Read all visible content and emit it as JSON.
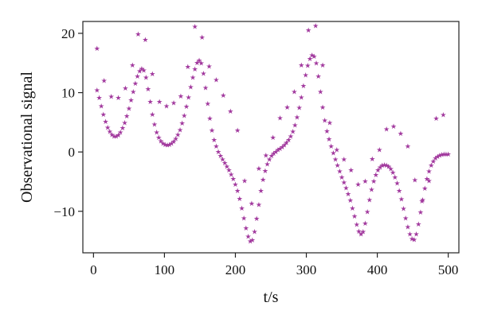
{
  "chart_data": {
    "type": "scatter",
    "title": "",
    "xlabel": "t/s",
    "ylabel": "Observational signal",
    "xlim": [
      -15,
      515
    ],
    "ylim": [
      -17,
      22
    ],
    "xticks": [
      0,
      100,
      200,
      300,
      400,
      500
    ],
    "yticks": [
      -10,
      0,
      10,
      20
    ],
    "grid": false,
    "legend": "none",
    "marker": "star",
    "colors": {
      "marker": "#a23a9e",
      "axis": "#222222"
    },
    "series": [
      {
        "curve_points": [
          [
            5,
            10.3
          ],
          [
            8,
            9.0
          ],
          [
            11,
            7.6
          ],
          [
            14,
            6.2
          ],
          [
            17,
            5.0
          ],
          [
            20,
            4.0
          ],
          [
            23,
            3.3
          ],
          [
            26,
            2.8
          ],
          [
            29,
            2.5
          ],
          [
            32,
            2.5
          ],
          [
            35,
            2.7
          ],
          [
            38,
            3.2
          ],
          [
            41,
            3.9
          ],
          [
            44,
            4.8
          ],
          [
            47,
            5.9
          ],
          [
            50,
            7.2
          ],
          [
            53,
            8.6
          ],
          [
            56,
            10.0
          ],
          [
            59,
            11.4
          ],
          [
            62,
            12.6
          ],
          [
            65,
            13.5
          ],
          [
            68,
            13.9
          ],
          [
            71,
            13.6
          ],
          [
            74,
            12.4
          ],
          [
            77,
            10.5
          ],
          [
            80,
            8.3
          ],
          [
            83,
            6.2
          ],
          [
            86,
            4.5
          ],
          [
            89,
            3.2
          ],
          [
            92,
            2.3
          ],
          [
            95,
            1.7
          ],
          [
            98,
            1.3
          ],
          [
            101,
            1.1
          ],
          [
            104,
            1.0
          ],
          [
            107,
            1.1
          ],
          [
            110,
            1.3
          ],
          [
            113,
            1.6
          ],
          [
            116,
            2.1
          ],
          [
            119,
            2.8
          ],
          [
            122,
            3.6
          ],
          [
            125,
            4.7
          ],
          [
            128,
            6.0
          ],
          [
            131,
            7.5
          ],
          [
            134,
            9.1
          ],
          [
            137,
            10.8
          ],
          [
            140,
            12.4
          ],
          [
            143,
            13.8
          ],
          [
            146,
            14.9
          ],
          [
            149,
            15.3
          ],
          [
            152,
            14.8
          ],
          [
            155,
            13.1
          ],
          [
            158,
            10.7
          ],
          [
            161,
            8.0
          ],
          [
            164,
            5.5
          ],
          [
            167,
            3.5
          ],
          [
            170,
            1.9
          ],
          [
            173,
            0.8
          ],
          [
            176,
            -0.1
          ],
          [
            179,
            -0.8
          ],
          [
            182,
            -1.4
          ],
          [
            185,
            -2.0
          ],
          [
            188,
            -2.6
          ],
          [
            191,
            -3.2
          ],
          [
            194,
            -3.9
          ],
          [
            197,
            -4.7
          ],
          [
            200,
            -5.6
          ],
          [
            203,
            -6.7
          ],
          [
            206,
            -8.0
          ],
          [
            209,
            -9.6
          ],
          [
            212,
            -11.3
          ],
          [
            215,
            -13.0
          ],
          [
            218,
            -14.4
          ],
          [
            221,
            -15.2
          ],
          [
            224,
            -15.0
          ],
          [
            227,
            -13.6
          ],
          [
            230,
            -11.4
          ],
          [
            233,
            -9.0
          ],
          [
            236,
            -6.7
          ],
          [
            239,
            -4.8
          ],
          [
            242,
            -3.3
          ],
          [
            245,
            -2.2
          ],
          [
            248,
            -1.4
          ],
          [
            251,
            -0.8
          ],
          [
            254,
            -0.4
          ],
          [
            257,
            -0.1
          ],
          [
            260,
            0.2
          ],
          [
            263,
            0.4
          ],
          [
            266,
            0.7
          ],
          [
            269,
            1.0
          ],
          [
            272,
            1.4
          ],
          [
            275,
            1.9
          ],
          [
            278,
            2.5
          ],
          [
            281,
            3.3
          ],
          [
            284,
            4.4
          ],
          [
            287,
            5.7
          ],
          [
            290,
            7.3
          ],
          [
            293,
            9.1
          ],
          [
            296,
            11.0
          ],
          [
            299,
            12.8
          ],
          [
            302,
            14.4
          ],
          [
            305,
            15.6
          ],
          [
            308,
            16.2
          ],
          [
            311,
            16.0
          ],
          [
            314,
            14.8
          ],
          [
            317,
            12.6
          ],
          [
            320,
            10.0
          ],
          [
            323,
            7.4
          ],
          [
            326,
            5.2
          ],
          [
            329,
            3.4
          ],
          [
            332,
            2.0
          ],
          [
            335,
            0.8
          ],
          [
            338,
            -0.3
          ],
          [
            341,
            -1.4
          ],
          [
            344,
            -2.4
          ],
          [
            347,
            -3.4
          ],
          [
            350,
            -4.4
          ],
          [
            353,
            -5.3
          ],
          [
            356,
            -6.2
          ],
          [
            359,
            -7.2
          ],
          [
            362,
            -8.3
          ],
          [
            365,
            -9.6
          ],
          [
            368,
            -11.0
          ],
          [
            371,
            -12.4
          ],
          [
            374,
            -13.5
          ],
          [
            377,
            -14.0
          ],
          [
            380,
            -13.6
          ],
          [
            383,
            -12.2
          ],
          [
            386,
            -10.2
          ],
          [
            389,
            -8.2
          ],
          [
            392,
            -6.5
          ],
          [
            395,
            -5.1
          ],
          [
            398,
            -4.0
          ],
          [
            401,
            -3.2
          ],
          [
            404,
            -2.7
          ],
          [
            407,
            -2.4
          ],
          [
            410,
            -2.3
          ],
          [
            413,
            -2.4
          ],
          [
            416,
            -2.6
          ],
          [
            419,
            -3.0
          ],
          [
            422,
            -3.6
          ],
          [
            425,
            -4.4
          ],
          [
            428,
            -5.4
          ],
          [
            431,
            -6.7
          ],
          [
            434,
            -8.1
          ],
          [
            437,
            -9.7
          ],
          [
            440,
            -11.3
          ],
          [
            443,
            -12.8
          ],
          [
            446,
            -14.0
          ],
          [
            449,
            -14.8
          ],
          [
            452,
            -14.9
          ],
          [
            455,
            -14.0
          ],
          [
            458,
            -12.3
          ],
          [
            461,
            -10.3
          ],
          [
            464,
            -8.2
          ],
          [
            467,
            -6.3
          ],
          [
            470,
            -4.7
          ],
          [
            473,
            -3.4
          ],
          [
            476,
            -2.4
          ],
          [
            479,
            -1.7
          ],
          [
            482,
            -1.2
          ],
          [
            485,
            -0.9
          ],
          [
            488,
            -0.7
          ],
          [
            491,
            -0.6
          ],
          [
            494,
            -0.5
          ],
          [
            497,
            -0.5
          ],
          [
            500,
            -0.5
          ]
        ],
        "outlier_points": [
          [
            5,
            17.3
          ],
          [
            15,
            11.9
          ],
          [
            25,
            9.2
          ],
          [
            35,
            9.0
          ],
          [
            45,
            10.6
          ],
          [
            55,
            14.5
          ],
          [
            63,
            19.7
          ],
          [
            73,
            18.8
          ],
          [
            83,
            13.0
          ],
          [
            93,
            8.3
          ],
          [
            103,
            7.6
          ],
          [
            113,
            8.1
          ],
          [
            123,
            9.3
          ],
          [
            133,
            14.2
          ],
          [
            143,
            21.0
          ],
          [
            153,
            19.2
          ],
          [
            163,
            14.3
          ],
          [
            173,
            12.0
          ],
          [
            183,
            9.4
          ],
          [
            193,
            6.7
          ],
          [
            203,
            3.5
          ],
          [
            213,
            -5.0
          ],
          [
            223,
            -8.8
          ],
          [
            233,
            -2.9
          ],
          [
            243,
            -0.7
          ],
          [
            253,
            2.3
          ],
          [
            263,
            5.6
          ],
          [
            273,
            7.4
          ],
          [
            283,
            10.0
          ],
          [
            293,
            14.5
          ],
          [
            303,
            20.4
          ],
          [
            313,
            21.1
          ],
          [
            323,
            14.5
          ],
          [
            333,
            4.8
          ],
          [
            343,
            0.2
          ],
          [
            353,
            -1.4
          ],
          [
            363,
            -3.2
          ],
          [
            373,
            -5.6
          ],
          [
            383,
            -5.1
          ],
          [
            393,
            -1.3
          ],
          [
            403,
            0.2
          ],
          [
            413,
            3.7
          ],
          [
            423,
            4.2
          ],
          [
            433,
            3.0
          ],
          [
            443,
            0.8
          ],
          [
            453,
            -4.9
          ],
          [
            463,
            -8.4
          ],
          [
            473,
            -5.0
          ],
          [
            483,
            5.5
          ],
          [
            493,
            6.1
          ]
        ]
      }
    ]
  }
}
